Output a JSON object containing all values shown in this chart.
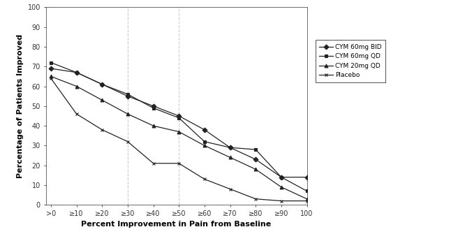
{
  "x_labels": [
    ">0",
    "≥10",
    "≥20",
    "≥30",
    "≥40",
    "≥50",
    "≥60",
    "≥70",
    "≥80",
    "≥90",
    "100"
  ],
  "x_values": [
    0,
    10,
    20,
    30,
    40,
    50,
    60,
    70,
    80,
    90,
    100
  ],
  "series": {
    "CYM 60mg BID": {
      "y": [
        69,
        67,
        61,
        55,
        50,
        45,
        38,
        29,
        23,
        14,
        14
      ],
      "marker": "D",
      "color": "#222222",
      "linewidth": 0.9,
      "markersize": 3.5
    },
    "CYM 60mg QD": {
      "y": [
        72,
        67,
        61,
        56,
        49,
        44,
        32,
        29,
        28,
        14,
        7
      ],
      "marker": "s",
      "color": "#222222",
      "linewidth": 0.9,
      "markersize": 3.5
    },
    "CYM 20mg QD": {
      "y": [
        65,
        60,
        53,
        46,
        40,
        37,
        30,
        24,
        18,
        9,
        3
      ],
      "marker": "^",
      "color": "#222222",
      "linewidth": 0.9,
      "markersize": 3.5
    },
    "Placebo": {
      "y": [
        64,
        46,
        38,
        32,
        21,
        21,
        13,
        8,
        3,
        2,
        2
      ],
      "marker": "x",
      "color": "#222222",
      "linewidth": 0.9,
      "markersize": 3.5
    }
  },
  "xlabel": "Percent Improvement in Pain from Baseline",
  "ylabel": "Percentage of Patients Improved",
  "ylim": [
    0,
    100
  ],
  "xlim": [
    -2,
    100
  ],
  "yticks": [
    0,
    10,
    20,
    30,
    40,
    50,
    60,
    70,
    80,
    90,
    100
  ],
  "vlines": [
    30,
    50
  ],
  "vline_color": "#cccccc",
  "vline_style": "--",
  "background_color": "#ffffff",
  "xlabel_fontsize": 8,
  "ylabel_fontsize": 8,
  "tick_fontsize": 7,
  "legend_fontsize": 6.5
}
